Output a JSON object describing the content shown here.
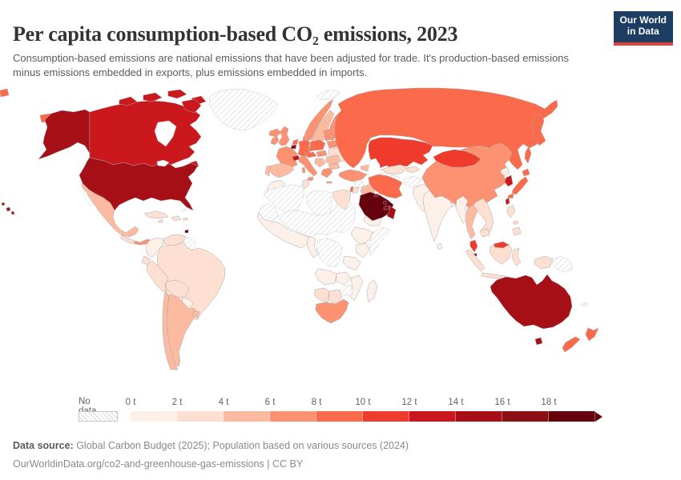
{
  "header": {
    "title": "Per capita consumption-based CO₂ emissions, 2023",
    "subtitle": "Consumption-based emissions are national emissions that have been adjusted for trade. It's production-based emissions minus emissions embedded in exports, plus emissions embedded in imports.",
    "logo": {
      "line1": "Our World",
      "line2": "in Data",
      "bg_color": "#1d3d63",
      "accent_color": "#e2413b"
    }
  },
  "legend": {
    "nodata_label": "No data"
  },
  "footer": {
    "source_label": "Data source:",
    "source_text": " Global Carbon Budget (2025); Population based on various sources (2024)",
    "link_text": "OurWorldinData.org/co2-and-greenhouse-gas-emissions",
    "license_text": " | CC BY"
  },
  "chart_data": {
    "type": "choropleth-map",
    "title": "Per capita consumption-based CO₂ emissions, 2023",
    "unit": "tonnes of CO₂ per person",
    "year": 2023,
    "legend_position": "bottom",
    "no_data_style": "diagonal-hatch",
    "bins": [
      {
        "label": "0 t",
        "range": "0–2 t",
        "color": "#fdf0e9"
      },
      {
        "label": "2 t",
        "range": "2–4 t",
        "color": "#fee0d2"
      },
      {
        "label": "4 t",
        "range": "4–6 t",
        "color": "#fcbba1"
      },
      {
        "label": "6 t",
        "range": "6–8 t",
        "color": "#fc9272"
      },
      {
        "label": "8 t",
        "range": "8–10 t",
        "color": "#fb6a4a"
      },
      {
        "label": "10 t",
        "range": "10–12 t",
        "color": "#ef3b2c"
      },
      {
        "label": "12 t",
        "range": "12–14 t",
        "color": "#cb181d"
      },
      {
        "label": "14 t",
        "range": "14–16 t",
        "color": "#a50f15"
      },
      {
        "label": "16 t",
        "range": "16–18 t",
        "color": "#8b0f14"
      },
      {
        "label": "18 t",
        "range": "18+ t",
        "color": "#67000d"
      }
    ],
    "countries": [
      {
        "id": "usa",
        "name": "United States",
        "bin": 7
      },
      {
        "id": "canada",
        "name": "Canada",
        "bin": 6
      },
      {
        "id": "greenland",
        "name": "Greenland",
        "bin": -1
      },
      {
        "id": "mexico",
        "name": "Mexico",
        "bin": 2
      },
      {
        "id": "central-america",
        "name": "Guatemala, Honduras & Nicaragua",
        "bin": 1
      },
      {
        "id": "panama",
        "name": "Costa Rica & Panama",
        "bin": 3
      },
      {
        "id": "cuba",
        "name": "Cuba",
        "bin": 1
      },
      {
        "id": "hispaniola",
        "name": "Haiti & Dominican Republic",
        "bin": 1
      },
      {
        "id": "jamaica",
        "name": "Jamaica",
        "bin": 1
      },
      {
        "id": "puerto-rico",
        "name": "Puerto Rico",
        "bin": 1
      },
      {
        "id": "bahamas",
        "name": "Bahamas",
        "bin": -1
      },
      {
        "id": "trinidad",
        "name": "Trinidad and Tobago",
        "bin": 9
      },
      {
        "id": "colombia",
        "name": "Colombia",
        "bin": 0
      },
      {
        "id": "venezuela",
        "name": "Venezuela",
        "bin": 1
      },
      {
        "id": "guyanas",
        "name": "Guyana & Suriname",
        "bin": -1
      },
      {
        "id": "ecuador",
        "name": "Ecuador",
        "bin": 1
      },
      {
        "id": "peru",
        "name": "Peru",
        "bin": 1
      },
      {
        "id": "brazil",
        "name": "Brazil",
        "bin": 1
      },
      {
        "id": "bolivia",
        "name": "Bolivia",
        "bin": 1
      },
      {
        "id": "paraguay",
        "name": "Paraguay",
        "bin": 0
      },
      {
        "id": "chile",
        "name": "Chile",
        "bin": 2
      },
      {
        "id": "argentina",
        "name": "Argentina",
        "bin": 2
      },
      {
        "id": "uruguay",
        "name": "Uruguay",
        "bin": 2
      },
      {
        "id": "iceland",
        "name": "Iceland",
        "bin": 3
      },
      {
        "id": "norway",
        "name": "Norway",
        "bin": 3
      },
      {
        "id": "sweden",
        "name": "Sweden",
        "bin": 2
      },
      {
        "id": "finland",
        "name": "Finland",
        "bin": 3
      },
      {
        "id": "denmark",
        "name": "Denmark",
        "bin": 3
      },
      {
        "id": "united-kingdom",
        "name": "United Kingdom",
        "bin": 3
      },
      {
        "id": "ireland",
        "name": "Ireland",
        "bin": 3
      },
      {
        "id": "netherlands",
        "name": "Netherlands",
        "bin": 4
      },
      {
        "id": "belgium",
        "name": "Belgium",
        "bin": 8
      },
      {
        "id": "germany",
        "name": "Germany",
        "bin": 4
      },
      {
        "id": "france",
        "name": "France",
        "bin": 3
      },
      {
        "id": "switzerland",
        "name": "Switzerland",
        "bin": 6
      },
      {
        "id": "spain",
        "name": "Spain",
        "bin": 2
      },
      {
        "id": "portugal",
        "name": "Portugal",
        "bin": 2
      },
      {
        "id": "italy",
        "name": "Italy",
        "bin": 3
      },
      {
        "id": "austria",
        "name": "Austria",
        "bin": 4
      },
      {
        "id": "czechia",
        "name": "Czechia",
        "bin": 4
      },
      {
        "id": "poland",
        "name": "Poland",
        "bin": 4
      },
      {
        "id": "baltics",
        "name": "Estonia, Latvia & Lithuania",
        "bin": 3
      },
      {
        "id": "belarus",
        "name": "Belarus",
        "bin": 3
      },
      {
        "id": "ukraine",
        "name": "Ukraine",
        "bin": 1
      },
      {
        "id": "slovakia-hungary",
        "name": "Slovakia & Hungary",
        "bin": 3
      },
      {
        "id": "romania",
        "name": "Romania",
        "bin": 2
      },
      {
        "id": "balkans",
        "name": "Western Balkans",
        "bin": 2
      },
      {
        "id": "bulgaria",
        "name": "Bulgaria",
        "bin": 2
      },
      {
        "id": "greece",
        "name": "Greece",
        "bin": 3
      },
      {
        "id": "turkey",
        "name": "Turkey",
        "bin": 3
      },
      {
        "id": "caucasus",
        "name": "Georgia, Armenia & Azerbaijan",
        "bin": 2
      },
      {
        "id": "svalbard",
        "name": "Svalbard",
        "bin": -1
      },
      {
        "id": "morocco",
        "name": "Morocco",
        "bin": 0
      },
      {
        "id": "algeria",
        "name": "Algeria",
        "bin": -1
      },
      {
        "id": "tunisia",
        "name": "Tunisia",
        "bin": 1
      },
      {
        "id": "libya",
        "name": "Libya",
        "bin": -1
      },
      {
        "id": "egypt",
        "name": "Egypt",
        "bin": 1
      },
      {
        "id": "mauritania",
        "name": "Mauritania & Western Sahara",
        "bin": -1
      },
      {
        "id": "sahel",
        "name": "Mali, Niger, Chad & Sudan",
        "bin": -1
      },
      {
        "id": "west-africa",
        "name": "West Africa",
        "bin": 0
      },
      {
        "id": "gabon-congo",
        "name": "Gabon & Congo",
        "bin": 0
      },
      {
        "id": "drc",
        "name": "Democratic Republic of Congo",
        "bin": -1
      },
      {
        "id": "ethiopia",
        "name": "Ethiopia",
        "bin": 0
      },
      {
        "id": "somalia",
        "name": "Somalia",
        "bin": -1
      },
      {
        "id": "kenya",
        "name": "Kenya",
        "bin": 0
      },
      {
        "id": "tanzania",
        "name": "Tanzania",
        "bin": 0
      },
      {
        "id": "angola",
        "name": "Angola",
        "bin": 0
      },
      {
        "id": "zambia",
        "name": "Zambia",
        "bin": 0
      },
      {
        "id": "mozambique",
        "name": "Mozambique",
        "bin": 0
      },
      {
        "id": "zimbabwe",
        "name": "Zimbabwe",
        "bin": -1
      },
      {
        "id": "namibia",
        "name": "Namibia",
        "bin": 1
      },
      {
        "id": "botswana",
        "name": "Botswana",
        "bin": 1
      },
      {
        "id": "south-africa",
        "name": "South Africa",
        "bin": 3
      },
      {
        "id": "madagascar",
        "name": "Madagascar",
        "bin": 0
      },
      {
        "id": "syria",
        "name": "Syria",
        "bin": -1
      },
      {
        "id": "iraq",
        "name": "Iraq",
        "bin": 2
      },
      {
        "id": "israel",
        "name": "Israel",
        "bin": 4
      },
      {
        "id": "jordan",
        "name": "Jordan",
        "bin": 1
      },
      {
        "id": "saudi-arabia",
        "name": "Saudi Arabia",
        "bin": 9
      },
      {
        "id": "yemen",
        "name": "Yemen",
        "bin": 0
      },
      {
        "id": "oman",
        "name": "Oman",
        "bin": 7
      },
      {
        "id": "uae",
        "name": "United Arab Emirates",
        "bin": 8
      },
      {
        "id": "kuwait",
        "name": "Kuwait",
        "bin": 8
      },
      {
        "id": "qatar",
        "name": "Qatar",
        "bin": 9
      },
      {
        "id": "iran",
        "name": "Iran",
        "bin": 4
      },
      {
        "id": "russia",
        "name": "Russia",
        "bin": 4
      },
      {
        "id": "kazakhstan",
        "name": "Kazakhstan",
        "bin": 5
      },
      {
        "id": "uzbekistan",
        "name": "Uzbekistan",
        "bin": 1
      },
      {
        "id": "turkmenistan",
        "name": "Turkmenistan",
        "bin": -1
      },
      {
        "id": "kyrgyzstan-tajikistan",
        "name": "Kyrgyzstan & Tajikistan",
        "bin": 1
      },
      {
        "id": "afghanistan",
        "name": "Afghanistan",
        "bin": -1
      },
      {
        "id": "pakistan",
        "name": "Pakistan",
        "bin": 0
      },
      {
        "id": "india",
        "name": "India",
        "bin": 0
      },
      {
        "id": "sri-lanka",
        "name": "Sri Lanka",
        "bin": 0
      },
      {
        "id": "bangladesh",
        "name": "Bangladesh",
        "bin": 0
      },
      {
        "id": "myanmar",
        "name": "Myanmar",
        "bin": 0
      },
      {
        "id": "thailand",
        "name": "Thailand",
        "bin": 2
      },
      {
        "id": "vietnam-laos",
        "name": "Vietnam & Laos",
        "bin": 1
      },
      {
        "id": "cambodia",
        "name": "Cambodia",
        "bin": 1
      },
      {
        "id": "malaysia",
        "name": "Malaysia",
        "bin": 5
      },
      {
        "id": "singapore",
        "name": "Singapore",
        "bin": 9
      },
      {
        "id": "indonesia",
        "name": "Indonesia",
        "bin": 1
      },
      {
        "id": "papua-new-guinea",
        "name": "Papua New Guinea",
        "bin": -1
      },
      {
        "id": "philippines",
        "name": "Philippines",
        "bin": 1
      },
      {
        "id": "china",
        "name": "China",
        "bin": 3
      },
      {
        "id": "mongolia",
        "name": "Mongolia",
        "bin": 5
      },
      {
        "id": "japan",
        "name": "Japan",
        "bin": 4
      },
      {
        "id": "north-korea",
        "name": "North Korea",
        "bin": 0
      },
      {
        "id": "south-korea",
        "name": "South Korea",
        "bin": 6
      },
      {
        "id": "taiwan",
        "name": "Taiwan",
        "bin": 6
      },
      {
        "id": "australia",
        "name": "Australia",
        "bin": 7
      },
      {
        "id": "new-zealand",
        "name": "New Zealand",
        "bin": 4
      },
      {
        "id": "new-caledonia",
        "name": "New Caledonia",
        "bin": -1
      }
    ]
  }
}
